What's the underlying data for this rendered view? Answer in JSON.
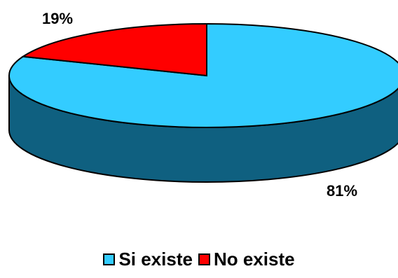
{
  "chart_data": {
    "type": "pie",
    "three_d": true,
    "title": "",
    "categories": [
      "Si existe",
      "No existe"
    ],
    "values": [
      81,
      19
    ],
    "data_labels": [
      "81%",
      "19%"
    ],
    "colors": {
      "Si existe": {
        "top": "#33CCFF",
        "side": "#0F6080"
      },
      "No existe": {
        "top": "#FF0000",
        "side": "#8A0000"
      }
    },
    "legend": "bottom"
  }
}
